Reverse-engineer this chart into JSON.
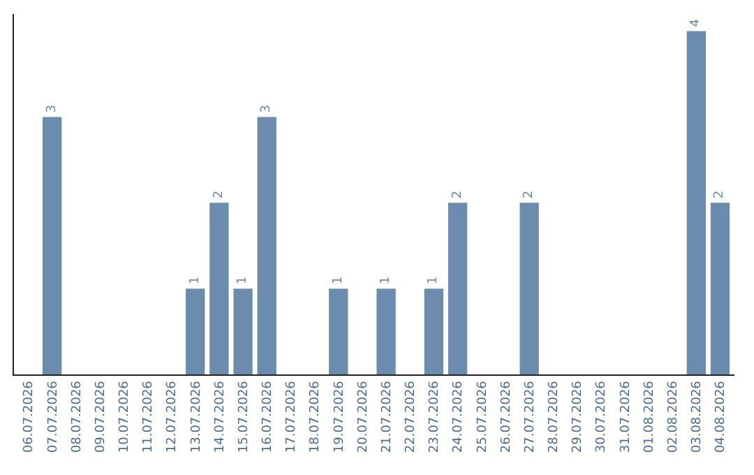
{
  "chart_data": {
    "type": "bar",
    "categories": [
      "06.07.2026",
      "07.07.2026",
      "08.07.2026",
      "09.07.2026",
      "10.07.2026",
      "11.07.2026",
      "12.07.2026",
      "13.07.2026",
      "14.07.2026",
      "15.07.2026",
      "16.07.2026",
      "17.07.2026",
      "18.07.2026",
      "19.07.2026",
      "20.07.2026",
      "21.07.2026",
      "22.07.2026",
      "23.07.2026",
      "24.07.2026",
      "25.07.2026",
      "26.07.2026",
      "27.07.2026",
      "28.07.2026",
      "29.07.2026",
      "30.07.2026",
      "31.07.2026",
      "01.08.2026",
      "02.08.2026",
      "03.08.2026",
      "04.08.2026"
    ],
    "values": [
      0,
      3,
      0,
      0,
      0,
      0,
      0,
      1,
      2,
      1,
      3,
      0,
      0,
      1,
      0,
      1,
      0,
      1,
      2,
      0,
      0,
      2,
      0,
      0,
      0,
      0,
      0,
      0,
      4,
      2
    ],
    "value_labels": [
      null,
      "3",
      null,
      null,
      null,
      null,
      null,
      "1",
      "2",
      "1",
      "3",
      null,
      null,
      "1",
      null,
      "1",
      null,
      "1",
      "2",
      null,
      null,
      "2",
      null,
      null,
      null,
      null,
      null,
      null,
      "4",
      "2"
    ],
    "color": "#6b8cae",
    "tick_labels": "x"
  }
}
